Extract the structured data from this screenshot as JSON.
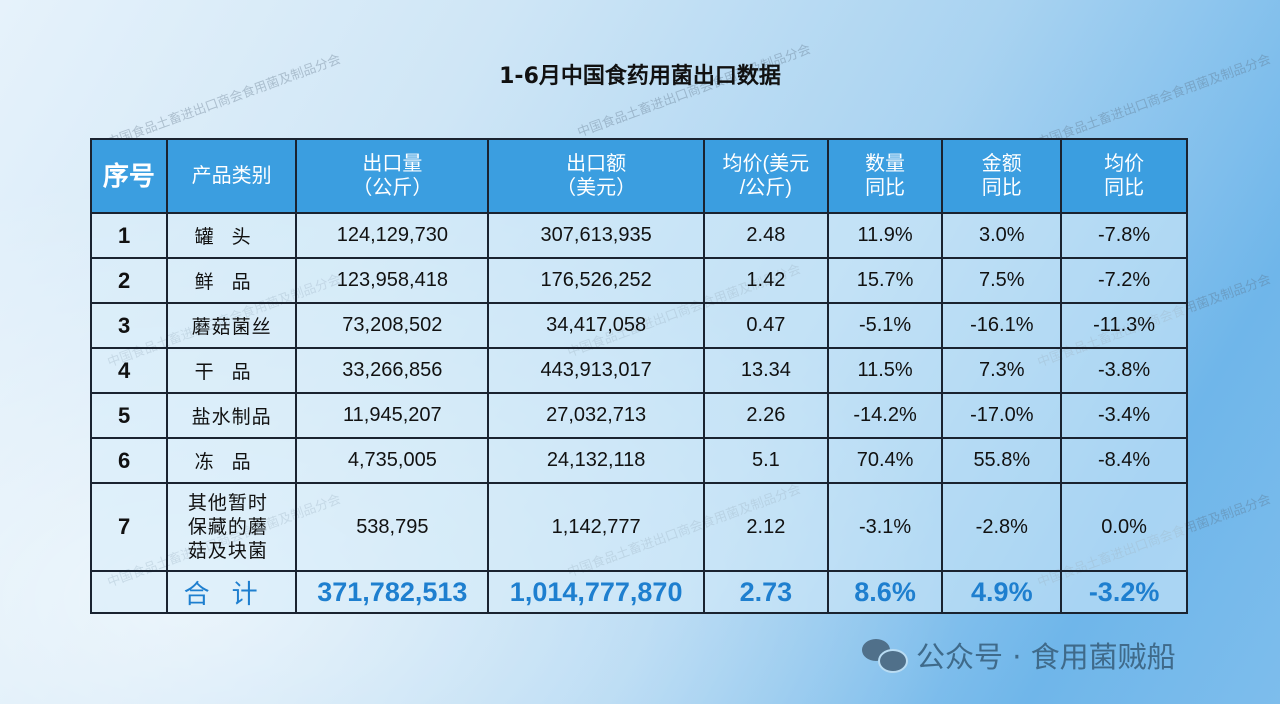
{
  "title": "1-6月中国食药用菌出口数据",
  "watermark": "中国食品土畜进出口商会食用菌及制品分会",
  "table": {
    "headers": [
      "序号",
      "产品类别",
      "出口量\n（公斤）",
      "出口额\n（美元）",
      "均价(美元\n/公斤)",
      "数量\n同比",
      "金额\n同比",
      "均价\n同比"
    ],
    "rows": [
      {
        "no": "1",
        "category": "罐头",
        "volume": "124,129,730",
        "value": "307,613,935",
        "price": "2.48",
        "vol_yoy": "11.9%",
        "val_yoy": "3.0%",
        "price_yoy": "-7.8%"
      },
      {
        "no": "2",
        "category": "鲜品",
        "volume": "123,958,418",
        "value": "176,526,252",
        "price": "1.42",
        "vol_yoy": "15.7%",
        "val_yoy": "7.5%",
        "price_yoy": "-7.2%"
      },
      {
        "no": "3",
        "category": "蘑菇菌丝",
        "volume": "73,208,502",
        "value": "34,417,058",
        "price": "0.47",
        "vol_yoy": "-5.1%",
        "val_yoy": "-16.1%",
        "price_yoy": "-11.3%"
      },
      {
        "no": "4",
        "category": "干品",
        "volume": "33,266,856",
        "value": "443,913,017",
        "price": "13.34",
        "vol_yoy": "11.5%",
        "val_yoy": "7.3%",
        "price_yoy": "-3.8%"
      },
      {
        "no": "5",
        "category": "盐水制品",
        "volume": "11,945,207",
        "value": "27,032,713",
        "price": "2.26",
        "vol_yoy": "-14.2%",
        "val_yoy": "-17.0%",
        "price_yoy": "-3.4%"
      },
      {
        "no": "6",
        "category": "冻品",
        "volume": "4,735,005",
        "value": "24,132,118",
        "price": "5.1",
        "vol_yoy": "70.4%",
        "val_yoy": "55.8%",
        "price_yoy": "-8.4%"
      },
      {
        "no": "7",
        "category": "其他暂时保藏的蘑菇及块菌",
        "volume": "538,795",
        "value": "1,142,777",
        "price": "2.12",
        "vol_yoy": "-3.1%",
        "val_yoy": "-2.8%",
        "price_yoy": "0.0%"
      }
    ],
    "total": {
      "label": "合计",
      "volume": "371,782,513",
      "value": "1,014,777,870",
      "price": "2.73",
      "vol_yoy": "8.6%",
      "val_yoy": "4.9%",
      "price_yoy": "-3.2%"
    }
  },
  "footer": {
    "icon": "wechat-icon",
    "text": "公众号 · 食用菌贼船"
  },
  "colors": {
    "header_bg": "#3b9ee0",
    "total_text": "#1e7fcf"
  }
}
